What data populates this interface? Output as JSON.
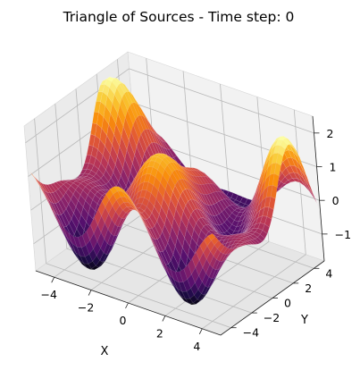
{
  "title": "Triangle of Sources - Time step: 0",
  "chart_data": {
    "type": "surface",
    "title": "Triangle of Sources - Time step: 0",
    "xlabel": "X",
    "ylabel": "Y",
    "zlabel": "",
    "xlim": [
      -5,
      5
    ],
    "ylim": [
      -5,
      5
    ],
    "zlim": [
      -1.8,
      2.5
    ],
    "x_ticks": [
      -4,
      -2,
      0,
      2,
      4
    ],
    "y_ticks": [
      -4,
      -2,
      0,
      2,
      4
    ],
    "z_ticks": [
      -1,
      0,
      1,
      2
    ],
    "colormap": "inferno",
    "grid": true,
    "sources": [
      {
        "x": -4,
        "y": -2,
        "amplitude": 1.0
      },
      {
        "x": 4,
        "y": -2,
        "amplitude": 1.0
      },
      {
        "x": 0,
        "y": 3.5,
        "amplitude": 1.0
      }
    ],
    "wave_number": 1.3,
    "z_range_observed": [
      -1.6,
      2.3
    ]
  }
}
